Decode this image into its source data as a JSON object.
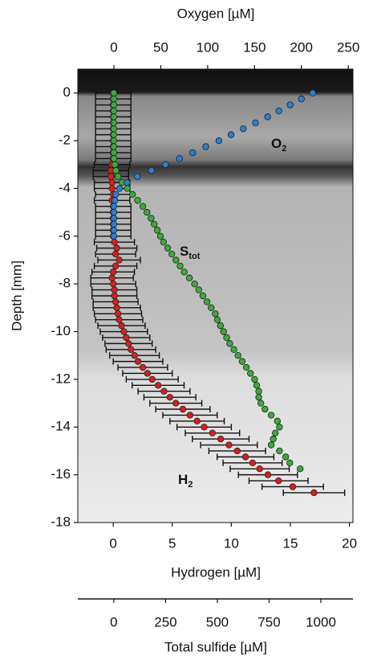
{
  "chart_data": {
    "type": "depth-profile",
    "ylabel": "Depth [mm]",
    "ylim": [
      -18,
      1
    ],
    "yticks": [
      0,
      -2,
      -4,
      -6,
      -8,
      -10,
      -12,
      -14,
      -16,
      -18
    ],
    "axes": {
      "hydrogen": {
        "label": "Hydrogen [µM]",
        "lim": [
          -3,
          20.3
        ],
        "ticks": [
          0,
          5,
          10,
          15,
          20
        ]
      },
      "oxygen": {
        "label": "Oxygen [µM]",
        "lim": [
          -38.5,
          255
        ],
        "ticks": [
          0,
          50,
          100,
          150,
          200,
          250
        ]
      },
      "sulfide": {
        "label": "Total sulfide [µM]",
        "lim": [
          -174,
          1155
        ],
        "ticks": [
          0,
          250,
          500,
          750,
          1000
        ]
      }
    },
    "series": [
      {
        "name": "H2",
        "axis": "hydrogen",
        "color": "#d42020",
        "depth": [
          0,
          -0.25,
          -0.5,
          -0.75,
          -1,
          -1.25,
          -1.5,
          -1.75,
          -2,
          -2.25,
          -2.5,
          -2.75,
          -3,
          -3.25,
          -3.5,
          -3.75,
          -4,
          -4.25,
          -4.5,
          -4.75,
          -5,
          -5.25,
          -5.5,
          -5.75,
          -6,
          -6.25,
          -6.5,
          -6.75,
          -7,
          -7.25,
          -7.5,
          -7.75,
          -8,
          -8.25,
          -8.5,
          -8.75,
          -9,
          -9.25,
          -9.5,
          -9.75,
          -10,
          -10.25,
          -10.5,
          -10.75,
          -11,
          -11.25,
          -11.5,
          -11.75,
          -12,
          -12.25,
          -12.5,
          -12.75,
          -13,
          -13.25,
          -13.5,
          -13.75,
          -14,
          -14.25,
          -14.5,
          -14.75,
          -15,
          -15.25,
          -15.5,
          -15.75,
          -16,
          -16.25,
          -16.5,
          -16.75
        ],
        "values": [
          0,
          0,
          0,
          0,
          0,
          0,
          0,
          0,
          0,
          0,
          0,
          0,
          -0.1,
          -0.2,
          -0.2,
          -0.1,
          -0.1,
          0,
          -0.1,
          0,
          0,
          0,
          0,
          0,
          0,
          0.1,
          0.3,
          0.2,
          0.5,
          0.2,
          0,
          -0.1,
          0,
          0.1,
          0.1,
          0.2,
          0.3,
          0.4,
          0.5,
          0.7,
          0.9,
          1.1,
          1.3,
          1.5,
          1.8,
          2.1,
          2.5,
          2.9,
          3.3,
          3.8,
          4.3,
          4.8,
          5.3,
          5.9,
          6.5,
          7.1,
          7.7,
          8.4,
          9.1,
          9.8,
          10.5,
          11.2,
          11.8,
          12.4,
          13.1,
          14,
          15.2,
          17
        ],
        "errors": [
          1.5,
          1.5,
          1.5,
          1.5,
          1.5,
          1.5,
          1.5,
          1.5,
          1.5,
          1.5,
          1.5,
          1.5,
          1.5,
          1.5,
          1.5,
          1.5,
          1.5,
          1.5,
          1.5,
          1.5,
          1.5,
          1.5,
          1.5,
          1.5,
          1.5,
          1.7,
          1.7,
          1.7,
          1.8,
          1.8,
          1.8,
          1.8,
          1.9,
          1.9,
          1.9,
          1.9,
          2,
          2,
          2,
          2,
          2,
          2,
          2,
          2.1,
          2.1,
          2.1,
          2.1,
          2.1,
          2.2,
          2.2,
          2.2,
          2.2,
          2.2,
          2.3,
          2.3,
          2.3,
          2.3,
          2.3,
          2.4,
          2.4,
          2.4,
          2.4,
          2.5,
          2.5,
          2.5,
          2.5,
          2.6,
          2.6
        ]
      },
      {
        "name": "Stot",
        "axis": "sulfide",
        "color": "#3aaa3a",
        "depth": [
          0,
          -0.25,
          -0.5,
          -0.75,
          -1,
          -1.25,
          -1.5,
          -1.75,
          -2,
          -2.25,
          -2.5,
          -2.75,
          -3,
          -3.25,
          -3.5,
          -3.75,
          -4,
          -4.25,
          -4.5,
          -4.75,
          -5,
          -5.25,
          -5.5,
          -5.75,
          -6,
          -6.25,
          -6.5,
          -6.75,
          -7,
          -7.25,
          -7.5,
          -7.75,
          -8,
          -8.25,
          -8.5,
          -8.75,
          -9,
          -9.25,
          -9.5,
          -9.75,
          -10,
          -10.25,
          -10.5,
          -10.75,
          -11,
          -11.25,
          -11.5,
          -11.75,
          -12,
          -12.25,
          -12.5,
          -12.75,
          -13,
          -13.25,
          -13.5,
          -13.75,
          -14,
          -14.25,
          -14.5,
          -14.75,
          -15,
          -15.25,
          -15.5,
          -15.75
        ],
        "values": [
          0,
          0,
          0,
          0,
          0,
          0,
          0,
          0,
          0,
          0,
          0,
          0,
          5,
          10,
          20,
          40,
          65,
          90,
          115,
          140,
          160,
          180,
          195,
          210,
          225,
          240,
          260,
          280,
          300,
          320,
          340,
          365,
          390,
          410,
          430,
          450,
          470,
          490,
          500,
          515,
          530,
          545,
          560,
          580,
          600,
          620,
          640,
          660,
          680,
          690,
          700,
          700,
          710,
          730,
          760,
          790,
          800,
          780,
          770,
          760,
          800,
          830,
          850,
          900
        ]
      },
      {
        "name": "O2",
        "axis": "oxygen",
        "color": "#2a7fd0",
        "depth": [
          0,
          -0.25,
          -0.5,
          -0.75,
          -1,
          -1.25,
          -1.5,
          -1.75,
          -2,
          -2.25,
          -2.5,
          -2.75,
          -3,
          -3.25,
          -3.5,
          -3.75,
          -4,
          -4.25,
          -4.5,
          -4.75,
          -5,
          -5.25,
          -5.5,
          -5.75,
          -6
        ],
        "values": [
          212,
          200,
          188,
          176,
          164,
          151,
          138,
          125,
          112,
          98,
          84,
          70,
          55,
          40,
          25,
          14,
          6,
          2,
          1,
          0,
          0,
          0,
          0,
          0,
          0
        ]
      }
    ],
    "annotations": [
      {
        "text": "O",
        "sub": "2"
      },
      {
        "text": "S",
        "sub": "tot"
      },
      {
        "text": "H",
        "sub": "2"
      }
    ]
  }
}
